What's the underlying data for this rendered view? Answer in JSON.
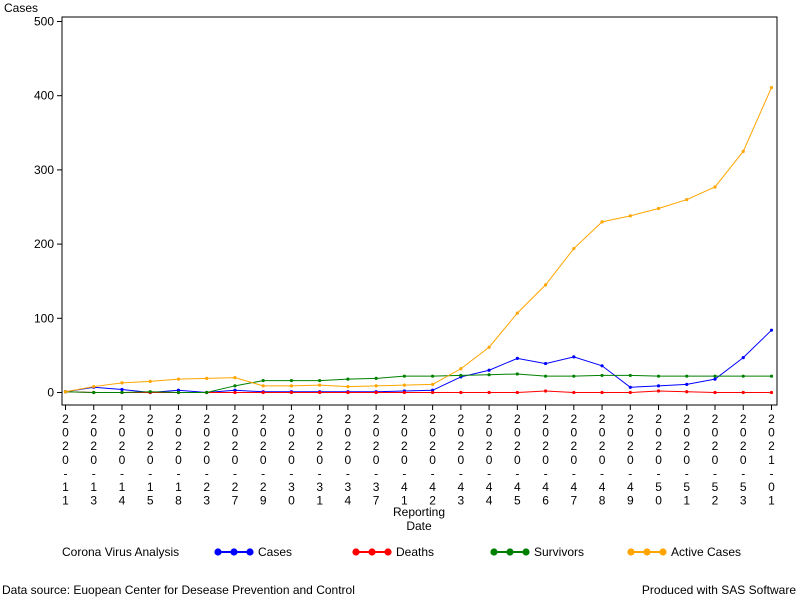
{
  "footer": {
    "source": "Data source: Euopean Center for Desease Prevention and Control",
    "produced": "Produced with SAS Software"
  },
  "chart_data": {
    "type": "line",
    "title": "",
    "ylabel": "Cases",
    "xlabel": "Reporting Date",
    "ylim": [
      0,
      500
    ],
    "yticks": [
      0,
      100,
      200,
      300,
      400,
      500
    ],
    "grid": false,
    "legend": {
      "title": "Corona Virus Analysis",
      "placement": "bottom"
    },
    "x": [
      "20200111",
      "20200113",
      "20200114",
      "20200115",
      "20200118",
      "20200123",
      "20200127",
      "20200129",
      "20200130",
      "20200131",
      "20200134",
      "20200137",
      "20200141",
      "20200142",
      "20200143",
      "20200144",
      "20200145",
      "20200146",
      "20200147",
      "20200148",
      "20200149",
      "20200150",
      "20200151",
      "20200152",
      "20200153",
      "20210101"
    ],
    "series": [
      {
        "name": "Cases",
        "color": "#0000ff",
        "values": [
          1,
          7,
          4,
          0,
          3,
          0,
          3,
          1,
          1,
          1,
          1,
          1,
          2,
          3,
          21,
          30,
          46,
          39,
          48,
          36,
          7,
          9,
          11,
          18,
          47,
          84
        ]
      },
      {
        "name": "Deaths",
        "color": "#ff0000",
        "values": [
          1,
          0,
          0,
          0,
          0,
          0,
          0,
          0,
          0,
          0,
          0,
          0,
          0,
          0,
          0,
          0,
          0,
          2,
          0,
          0,
          0,
          2,
          1,
          0,
          0,
          0
        ]
      },
      {
        "name": "Survivors",
        "color": "#008000",
        "values": [
          1,
          0,
          0,
          1,
          0,
          0,
          9,
          16,
          16,
          16,
          18,
          19,
          22,
          22,
          23,
          24,
          25,
          22,
          22,
          23,
          23,
          22,
          22,
          22,
          22,
          22
        ]
      },
      {
        "name": "Active Cases",
        "color": "#ffa500",
        "values": [
          1,
          8,
          13,
          15,
          18,
          19,
          20,
          9,
          9,
          10,
          8,
          9,
          10,
          11,
          32,
          61,
          107,
          145,
          194,
          230,
          238,
          248,
          260,
          277,
          325,
          411
        ]
      }
    ]
  }
}
